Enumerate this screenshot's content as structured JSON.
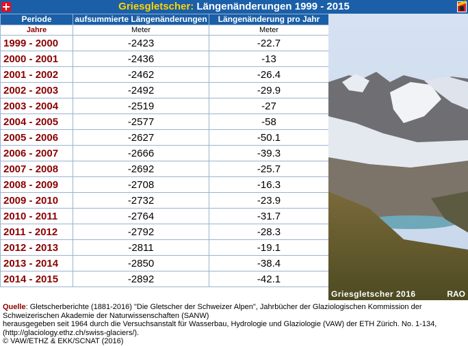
{
  "title": {
    "name": "Griesgletscher:",
    "rest": "Längenänderungen 1999 - 2015"
  },
  "table": {
    "headers": [
      "Periode",
      "aufsummierte Längenänderungen",
      "Längenänderung  pro Jahr"
    ],
    "units": [
      "Jahre",
      "Meter",
      "Meter"
    ],
    "rows": [
      {
        "period": "1999 - 2000",
        "cumulative": "-2423",
        "annual": "-22.7"
      },
      {
        "period": "2000 - 2001",
        "cumulative": "-2436",
        "annual": "-13"
      },
      {
        "period": "2001 - 2002",
        "cumulative": "-2462",
        "annual": "-26.4"
      },
      {
        "period": "2002 - 2003",
        "cumulative": "-2492",
        "annual": "-29.9"
      },
      {
        "period": "2003 - 2004",
        "cumulative": "-2519",
        "annual": "-27"
      },
      {
        "period": "2004 - 2005",
        "cumulative": "-2577",
        "annual": "-58"
      },
      {
        "period": "2005 - 2006",
        "cumulative": "-2627",
        "annual": "-50.1"
      },
      {
        "period": "2006 - 2007",
        "cumulative": "-2666",
        "annual": "-39.3"
      },
      {
        "period": "2007 - 2008",
        "cumulative": "-2692",
        "annual": "-25.7"
      },
      {
        "period": "2008 - 2009",
        "cumulative": "-2708",
        "annual": "-16.3"
      },
      {
        "period": "2009 - 2010",
        "cumulative": "-2732",
        "annual": "-23.9"
      },
      {
        "period": "2010 - 2011",
        "cumulative": "-2764",
        "annual": "-31.7"
      },
      {
        "period": "2011 - 2012",
        "cumulative": "-2792",
        "annual": "-28.3"
      },
      {
        "period": "2012 - 2013",
        "cumulative": "-2811",
        "annual": "-19.1"
      },
      {
        "period": "2013 - 2014",
        "cumulative": "-2850",
        "annual": "-38.4"
      },
      {
        "period": "2014 - 2015",
        "cumulative": "-2892",
        "annual": "-42.1"
      }
    ]
  },
  "photo": {
    "caption": "Griesgletscher 2016",
    "credit": "RAO"
  },
  "source": {
    "label": "Quelle",
    "line1": ": Gletscherberichte (1881-2016) \"Die Gletscher der Schweizer Alpen\", Jahrbücher der Glaziologischen Kommission der Schweizerischen Akademie der Naturwissenschaften (SANW)",
    "line2": "herausgegeben seit 1964 durch die Versuchsanstalt für Wasserbau, Hydrologie und Glaziologie (VAW) der ETH Zürich. No. 1-134, (http://glaciology.ethz.ch/swiss-glaciers/).",
    "line3": "© VAW/ETHZ & EKK/SCNAT (2016)"
  },
  "colors": {
    "header_bg": "#1a5fa8",
    "title_name": "#ffd400",
    "period_text": "#8b0000"
  },
  "icons": [
    "swiss-flag-icon",
    "bern-coat-of-arms-icon"
  ]
}
